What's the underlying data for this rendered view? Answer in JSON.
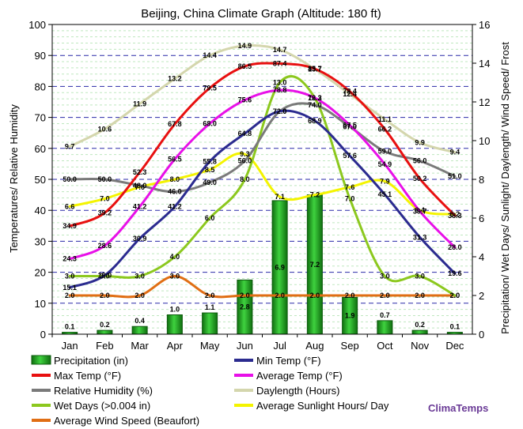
{
  "chart_data": {
    "type": "bar",
    "title": "Beijing, China Climate Graph (Altitude: 180 ft)",
    "ylabel_left": "Temperatures/ Relative Humidity",
    "ylabel_right": "Precipitation/ Wet Days/ Sunlight/ Daylength/ Wind Speed/ Frost",
    "ylim_left": [
      0,
      100
    ],
    "ylim_right": [
      0,
      16
    ],
    "yticks_left": [
      "0",
      "10",
      "20",
      "30",
      "40",
      "50",
      "60",
      "70",
      "80",
      "90",
      "100"
    ],
    "yticks_right": [
      "0",
      "2",
      "4",
      "6",
      "8",
      "10",
      "12",
      "14",
      "16"
    ],
    "categories": [
      "Jan",
      "Feb",
      "Mar",
      "Apr",
      "May",
      "Jun",
      "Jul",
      "Aug",
      "Sep",
      "Oct",
      "Nov",
      "Dec"
    ],
    "grid": true,
    "bars": {
      "name": "Precipitation (in)",
      "axis": "right",
      "color": "#1e9e1e",
      "values": [
        0.1,
        0.2,
        0.4,
        1.0,
        1.1,
        2.8,
        6.9,
        7.2,
        1.9,
        0.7,
        0.2,
        0.1
      ]
    },
    "series": [
      {
        "name": "Min Temp (°F)",
        "axis": "left",
        "color": "#2b2b8f",
        "values": [
          15.1,
          19.0,
          30.9,
          41.2,
          55.8,
          64.8,
          72.0,
          68.9,
          57.6,
          45.1,
          31.3,
          19.6
        ]
      },
      {
        "name": "Max Temp (°F)",
        "axis": "left",
        "color": "#e81010",
        "values": [
          34.9,
          39.2,
          52.3,
          67.8,
          79.5,
          86.5,
          87.4,
          85.7,
          78.4,
          66.2,
          50.2,
          38.3
        ]
      },
      {
        "name": "Average Temp (°F)",
        "axis": "left",
        "color": "#e810e8",
        "values": [
          24.3,
          28.6,
          41.2,
          56.5,
          68.0,
          75.6,
          78.8,
          76.3,
          67.5,
          54.9,
          39.7,
          28.0
        ]
      },
      {
        "name": "Relative Humidity (%)",
        "axis": "left",
        "color": "#7a7a7a",
        "values": [
          50.0,
          50.0,
          48.0,
          46.0,
          49.0,
          56.0,
          72.0,
          74.0,
          67.0,
          59.0,
          56.0,
          51.0
        ]
      },
      {
        "name": "Daylength (Hours)",
        "axis": "right",
        "color": "#d4d6ad",
        "values": [
          9.7,
          10.6,
          11.9,
          13.2,
          14.4,
          14.9,
          14.7,
          13.7,
          12.4,
          11.1,
          9.9,
          9.4
        ]
      },
      {
        "name": "Wet Days (>0.004 in)",
        "axis": "right",
        "color": "#8cc81e",
        "values": [
          3.0,
          3.0,
          3.0,
          4.0,
          6.0,
          8.0,
          13.0,
          12.2,
          7.0,
          3.0,
          3.0,
          2.0
        ]
      },
      {
        "name": "Average Sunlight Hours/ Day",
        "axis": "right",
        "color": "#f4f400",
        "values": [
          6.6,
          7.0,
          7.6,
          8.0,
          8.5,
          9.3,
          7.1,
          7.2,
          7.6,
          7.9,
          6.4,
          6.2
        ]
      },
      {
        "name": "Average Wind Speed (Beaufort)",
        "axis": "right",
        "color": "#e06e14",
        "values": [
          2.0,
          2.0,
          2.0,
          3.0,
          2.0,
          2.0,
          2.0,
          2.0,
          2.0,
          2.0,
          2.0,
          2.0
        ]
      }
    ],
    "legend": [
      {
        "name": "Precipitation (in)",
        "kind": "bar",
        "color": "#1e9e1e"
      },
      {
        "name": "Min Temp (°F)",
        "kind": "line",
        "color": "#2b2b8f"
      },
      {
        "name": "Max Temp (°F)",
        "kind": "line",
        "color": "#e81010"
      },
      {
        "name": "Average Temp (°F)",
        "kind": "line",
        "color": "#e810e8"
      },
      {
        "name": "Relative Humidity (%)",
        "kind": "line",
        "color": "#7a7a7a"
      },
      {
        "name": "Daylength (Hours)",
        "kind": "line",
        "color": "#d4d6ad"
      },
      {
        "name": "Wet Days (>0.004 in)",
        "kind": "line",
        "color": "#8cc81e"
      },
      {
        "name": "Average Sunlight Hours/ Day",
        "kind": "line",
        "color": "#f4f400"
      },
      {
        "name": "Average Wind Speed (Beaufort)",
        "kind": "line",
        "color": "#e06e14"
      }
    ],
    "legend_placement": "bottom",
    "brand": "ClimaTemps"
  }
}
